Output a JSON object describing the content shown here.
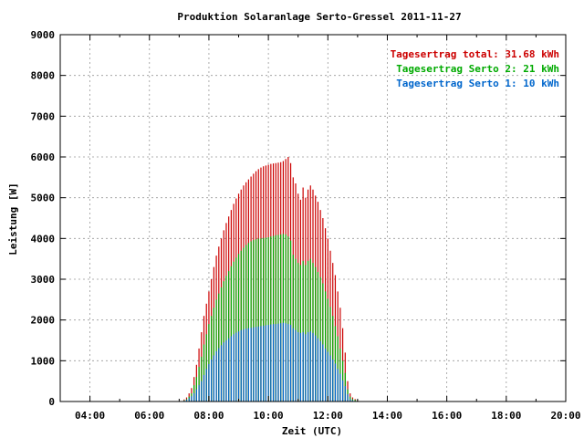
{
  "chart_data": {
    "type": "bar",
    "title": "Produktion Solaranlage Serto-Gressel 2011-11-27",
    "xlabel": "Zeit (UTC)",
    "ylabel": "Leistung [W]",
    "xlim": [
      3.0,
      20.0
    ],
    "ylim": [
      0,
      9000
    ],
    "x_ticks": [
      "04:00",
      "06:00",
      "08:00",
      "10:00",
      "12:00",
      "14:00",
      "16:00",
      "18:00",
      "20:00"
    ],
    "y_ticks": [
      "0",
      "1000",
      "2000",
      "3000",
      "4000",
      "5000",
      "6000",
      "7000",
      "8000",
      "9000"
    ],
    "grid": true,
    "legend_position": "top-right",
    "bar_interval_minutes": 5,
    "series": [
      {
        "name": "Tagesertrag total: 31.68 kWh",
        "color": "#cc0000",
        "start_time": "07:05",
        "values": [
          10,
          50,
          100,
          200,
          330,
          600,
          900,
          1300,
          1700,
          2100,
          2400,
          2700,
          3000,
          3300,
          3580,
          3800,
          4000,
          4200,
          4380,
          4540,
          4700,
          4850,
          4980,
          5100,
          5200,
          5300,
          5380,
          5450,
          5520,
          5590,
          5650,
          5700,
          5740,
          5770,
          5790,
          5810,
          5830,
          5840,
          5850,
          5860,
          5870,
          5900,
          5950,
          6000,
          5850,
          5500,
          5350,
          5100,
          4950,
          5250,
          5000,
          5200,
          5300,
          5200,
          5050,
          4900,
          4700,
          4500,
          4250,
          4000,
          3700,
          3400,
          3100,
          2700,
          2300,
          1800,
          1200,
          500,
          200,
          100,
          60,
          30
        ]
      },
      {
        "name": "Tagesertrag Serto 2: 21 kWh",
        "color": "#00aa00",
        "start_time": "07:05",
        "values": [
          5,
          30,
          60,
          120,
          200,
          400,
          600,
          850,
          1100,
          1400,
          1650,
          1900,
          2100,
          2300,
          2500,
          2650,
          2800,
          2950,
          3080,
          3200,
          3320,
          3430,
          3530,
          3620,
          3700,
          3770,
          3840,
          3890,
          3930,
          3960,
          3980,
          3995,
          4000,
          4010,
          4020,
          4030,
          4050,
          4060,
          4080,
          4090,
          4100,
          4110,
          4100,
          4050,
          3950,
          3600,
          3500,
          3400,
          3350,
          3450,
          3350,
          3450,
          3500,
          3400,
          3300,
          3180,
          3050,
          2900,
          2700,
          2520,
          2320,
          2100,
          1850,
          1600,
          1300,
          1000,
          700,
          300,
          120,
          60,
          40,
          20
        ]
      },
      {
        "name": "Tagesertrag Serto 1: 10 kWh",
        "color": "#0066cc",
        "start_time": "07:05",
        "values": [
          5,
          20,
          40,
          80,
          130,
          200,
          300,
          400,
          500,
          650,
          800,
          920,
          1030,
          1130,
          1230,
          1310,
          1380,
          1450,
          1500,
          1550,
          1600,
          1650,
          1690,
          1720,
          1750,
          1770,
          1790,
          1800,
          1810,
          1820,
          1830,
          1840,
          1850,
          1860,
          1870,
          1880,
          1890,
          1900,
          1900,
          1910,
          1920,
          1930,
          1920,
          1900,
          1880,
          1800,
          1750,
          1700,
          1680,
          1700,
          1650,
          1700,
          1720,
          1680,
          1620,
          1550,
          1480,
          1400,
          1300,
          1220,
          1130,
          1030,
          930,
          800,
          680,
          520,
          380,
          180,
          60,
          30,
          15,
          10
        ]
      }
    ]
  }
}
